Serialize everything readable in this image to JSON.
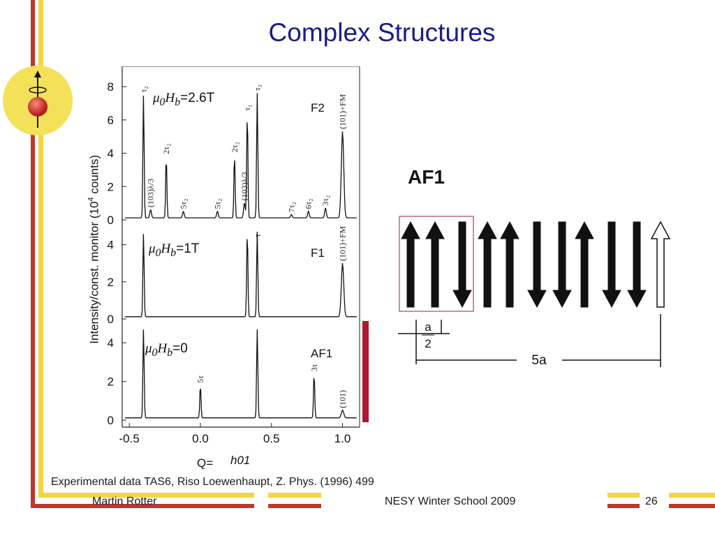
{
  "slide": {
    "title": "Complex Structures",
    "caption": "Experimental data TAS6, Riso Loewenhaupt, Z. Phys. (1996) 499",
    "footer": {
      "author": "Martin Rotter",
      "event": "NESY Winter School 2009",
      "page": "26"
    }
  },
  "colors": {
    "title": "#1c1c84",
    "accent_red": "#c0362c",
    "accent_yellow": "#f5d43f",
    "bracket": "#b01830",
    "logo_bg": "#f4e15a"
  },
  "logo": {
    "icon": "spin-atom-icon"
  },
  "figure": {
    "field_labels": [
      {
        "prefix": "μ",
        "sub1": "0",
        "mid": "H",
        "sub2": "b",
        "value": "=2.6T"
      },
      {
        "prefix": "μ",
        "sub1": "0",
        "mid": "H",
        "sub2": "b",
        "value": "=1T"
      },
      {
        "prefix": "μ",
        "sub1": "0",
        "mid": "H",
        "sub2": "b",
        "value": "=0"
      }
    ],
    "y_title": "Intensity/const. monitor (10",
    "y_title_sup": "4",
    "y_title_end": " counts)",
    "q_label": "Q=",
    "x_label": "h01",
    "af1_label": "AF1",
    "cell_half": {
      "num": "a",
      "den": "2"
    },
    "cell_len": "5a"
  },
  "chart_data": [
    {
      "type": "line",
      "panel": "F2",
      "x_ticks": [
        "-0.5",
        "0.0",
        "0.5",
        "1.0"
      ],
      "y_ticks": [
        "0",
        "2",
        "4",
        "6",
        "8"
      ],
      "xlim": [
        -0.55,
        1.12
      ],
      "ylim": [
        0,
        8.8
      ],
      "peaks": [
        {
          "x": -0.4,
          "y": 7.4,
          "label": "τ₂"
        },
        {
          "x": -0.35,
          "y": 0.5,
          "label": "(103)λ/3"
        },
        {
          "x": -0.24,
          "y": 3.7,
          "label": "2τ₂"
        },
        {
          "x": -0.12,
          "y": 0.4,
          "label": "5τ₂"
        },
        {
          "x": 0.12,
          "y": 0.4,
          "label": "5τ₂"
        },
        {
          "x": 0.24,
          "y": 3.8,
          "label": "2τ₂"
        },
        {
          "x": 0.31,
          "y": 0.9,
          "label": "(103)λ/3"
        },
        {
          "x": 0.33,
          "y": 6.3,
          "label": "τ₁"
        },
        {
          "x": 0.4,
          "y": 7.5,
          "label": "τ₂"
        },
        {
          "x": 0.64,
          "y": 0.2,
          "label": "7τ₂"
        },
        {
          "x": 0.76,
          "y": 0.4,
          "label": "6τ₂"
        },
        {
          "x": 0.88,
          "y": 0.6,
          "label": "3τ₂"
        },
        {
          "x": 1.0,
          "y": 5.2,
          "label": "(101)+FM"
        }
      ]
    },
    {
      "type": "line",
      "panel": "F1",
      "y_ticks": [
        "0",
        "2",
        "4"
      ],
      "ylim": [
        0,
        4.4
      ],
      "peaks": [
        {
          "x": -0.4,
          "y": 4.5,
          "label": ""
        },
        {
          "x": 0.33,
          "y": 4.6,
          "label": ""
        },
        {
          "x": 0.4,
          "y": 4.6,
          "label": "τ"
        },
        {
          "x": 1.0,
          "y": 2.9,
          "label": "(101)+FM"
        }
      ]
    },
    {
      "type": "line",
      "panel": "AF1",
      "y_ticks": [
        "0",
        "2",
        "4"
      ],
      "ylim": [
        0,
        4.4
      ],
      "peaks": [
        {
          "x": -0.4,
          "y": 4.6,
          "label": ""
        },
        {
          "x": 0.0,
          "y": 1.7,
          "label": "5τ"
        },
        {
          "x": 0.4,
          "y": 4.6,
          "label": ""
        },
        {
          "x": 0.8,
          "y": 2.3,
          "label": "3τ"
        },
        {
          "x": 1.0,
          "y": 0.4,
          "label": "(101)"
        }
      ]
    }
  ],
  "spin_structure": {
    "type": "AF1",
    "moments": [
      "up",
      "up",
      "down",
      "up",
      "up",
      "down",
      "down",
      "up",
      "down",
      "down",
      "up-open"
    ]
  }
}
